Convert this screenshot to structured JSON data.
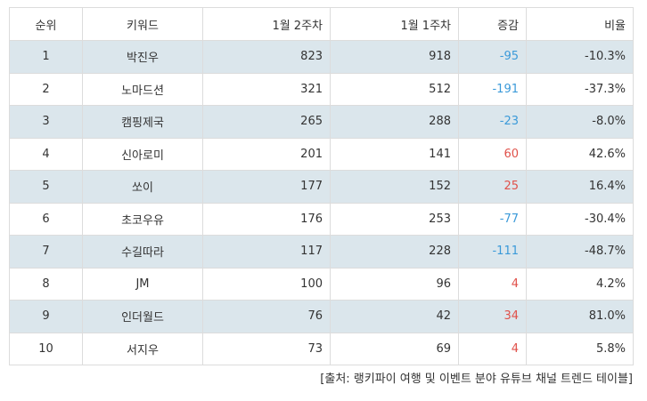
{
  "table": {
    "headers": {
      "rank": "순위",
      "keyword": "키워드",
      "week2": "1월 2주차",
      "week1": "1월 1주차",
      "change": "증감",
      "ratio": "비율"
    },
    "rows": [
      {
        "rank": "1",
        "keyword": "박진우",
        "week2": "823",
        "week1": "918",
        "change": "-95",
        "ratio": "-10.3%",
        "trend": "down"
      },
      {
        "rank": "2",
        "keyword": "노마드션",
        "week2": "321",
        "week1": "512",
        "change": "-191",
        "ratio": "-37.3%",
        "trend": "down"
      },
      {
        "rank": "3",
        "keyword": "캠핑제국",
        "week2": "265",
        "week1": "288",
        "change": "-23",
        "ratio": "-8.0%",
        "trend": "down"
      },
      {
        "rank": "4",
        "keyword": "신아로미",
        "week2": "201",
        "week1": "141",
        "change": "60",
        "ratio": "42.6%",
        "trend": "up"
      },
      {
        "rank": "5",
        "keyword": "쏘이",
        "week2": "177",
        "week1": "152",
        "change": "25",
        "ratio": "16.4%",
        "trend": "up"
      },
      {
        "rank": "6",
        "keyword": "초코우유",
        "week2": "176",
        "week1": "253",
        "change": "-77",
        "ratio": "-30.4%",
        "trend": "down"
      },
      {
        "rank": "7",
        "keyword": "수길따라",
        "week2": "117",
        "week1": "228",
        "change": "-111",
        "ratio": "-48.7%",
        "trend": "down"
      },
      {
        "rank": "8",
        "keyword": "JM",
        "week2": "100",
        "week1": "96",
        "change": "4",
        "ratio": "4.2%",
        "trend": "up"
      },
      {
        "rank": "9",
        "keyword": "인더월드",
        "week2": "76",
        "week1": "42",
        "change": "34",
        "ratio": "81.0%",
        "trend": "up"
      },
      {
        "rank": "10",
        "keyword": "서지우",
        "week2": "73",
        "week1": "69",
        "change": "4",
        "ratio": "5.8%",
        "trend": "up"
      }
    ]
  },
  "source": "[출처: 랭키파이 여행 및 이벤트 분야 유튜브 채널 트렌드 테이블]",
  "colors": {
    "row_stripe": "#dbe6ec",
    "increase": "#e0514a",
    "decrease": "#3b9ad9",
    "border": "#dcdcdc"
  }
}
